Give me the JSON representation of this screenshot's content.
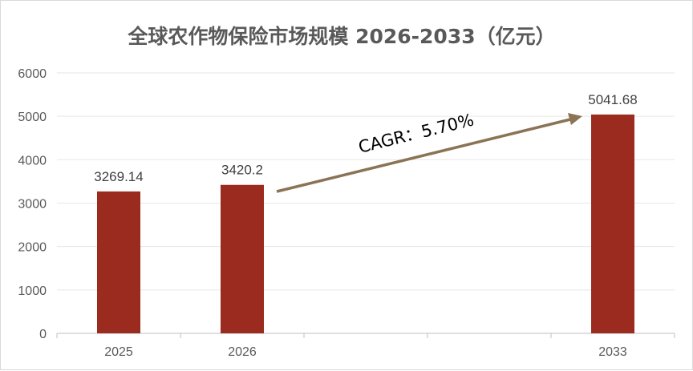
{
  "chart_data": {
    "type": "bar",
    "title": "全球农作物保险市场规模 2026-2033（亿元）",
    "categories": [
      "2025",
      "2026",
      "2033"
    ],
    "values": [
      3269.14,
      3420.2,
      5041.68
    ],
    "data_labels": [
      "3269.14",
      "3420.2",
      "5041.68"
    ],
    "y_ticks": [
      "0",
      "1000",
      "2000",
      "3000",
      "4000",
      "5000",
      "6000"
    ],
    "ylim": [
      0,
      6000
    ],
    "grid": true,
    "annotation": "CAGR：5.70%",
    "colors": {
      "bar": "#9c2b1f",
      "arrow": "#8b7355",
      "grid": "#e6e6e6"
    }
  }
}
